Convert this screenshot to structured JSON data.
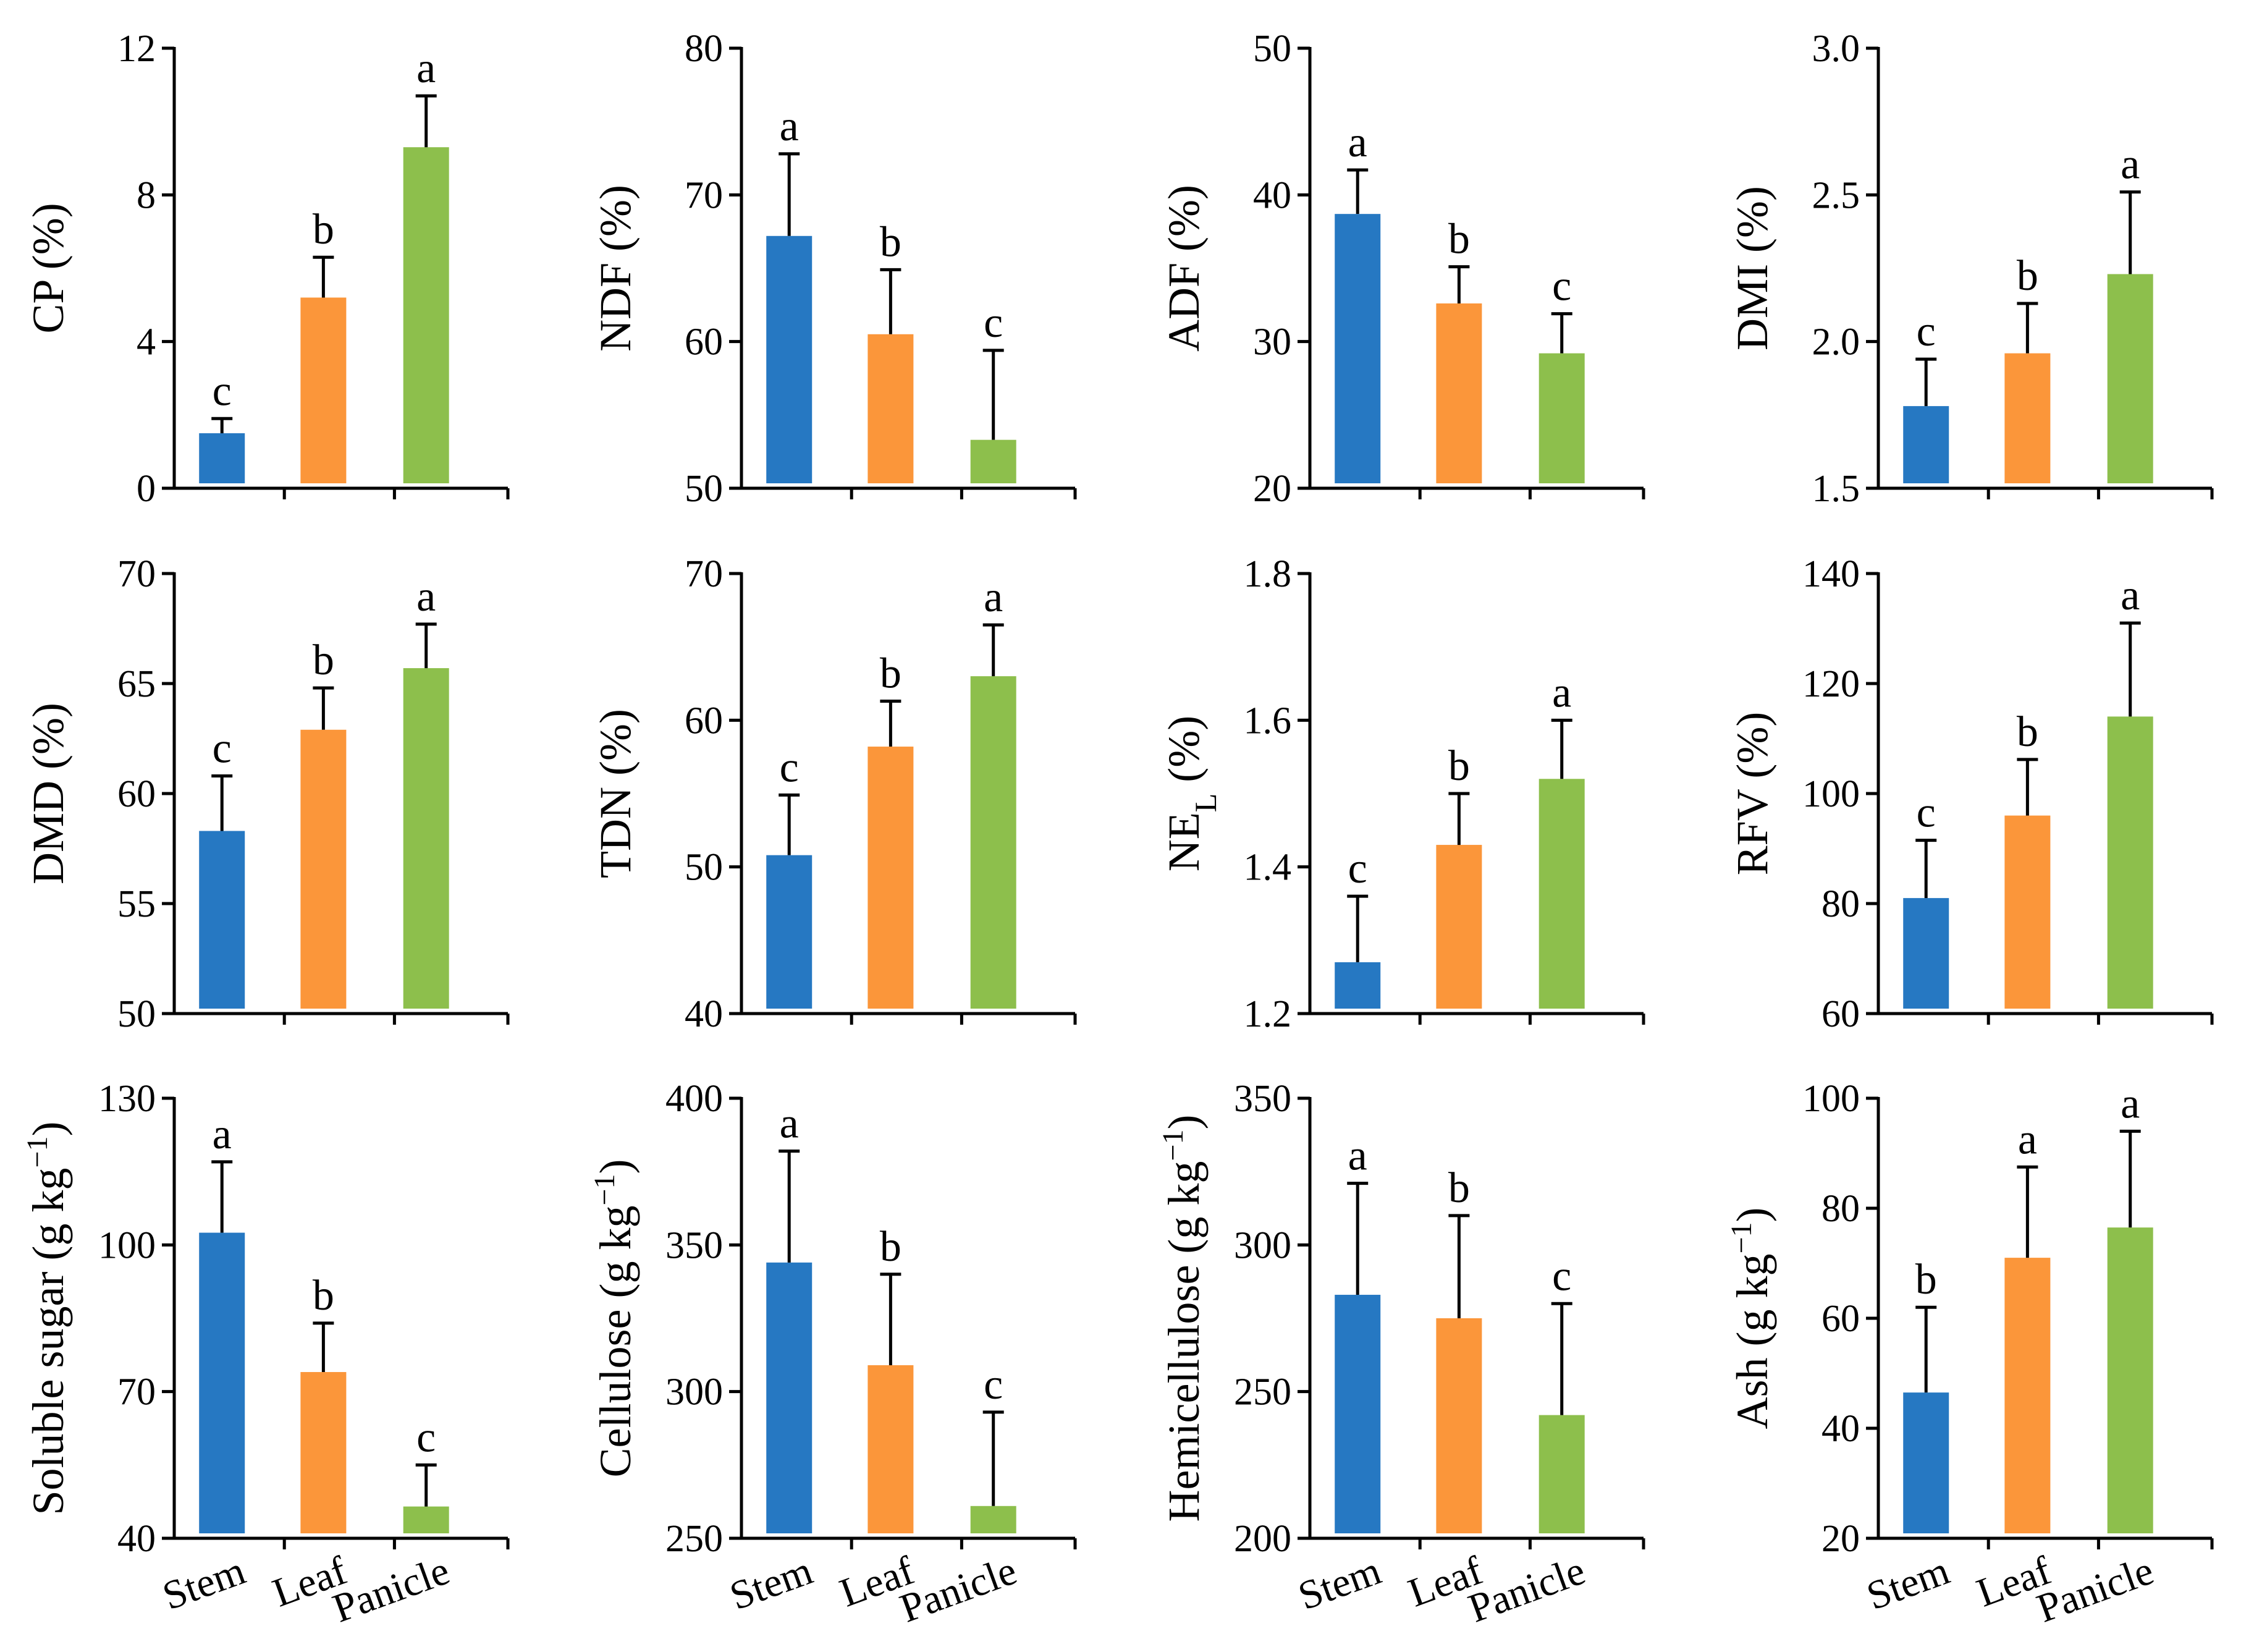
{
  "colors": {
    "stem": "#2678c2",
    "leaf": "#fb963a",
    "panicle": "#8dbf4c"
  },
  "categories": [
    "Stem",
    "Leaf",
    "Panicle"
  ],
  "chart_data": [
    {
      "type": "bar",
      "ylabel": [
        {
          "t": "CP (%)"
        }
      ],
      "ylim": [
        0,
        12
      ],
      "yticks": [
        0,
        4,
        8,
        12
      ],
      "values": [
        1.5,
        5.2,
        9.3
      ],
      "errors": [
        0.4,
        1.1,
        1.4
      ],
      "letters": [
        "c",
        "b",
        "a"
      ]
    },
    {
      "type": "bar",
      "ylabel": [
        {
          "t": "NDF (%)"
        }
      ],
      "ylim": [
        50,
        80
      ],
      "yticks": [
        50,
        60,
        70,
        80
      ],
      "values": [
        67.2,
        60.5,
        53.3
      ],
      "errors": [
        5.6,
        4.4,
        6.1
      ],
      "letters": [
        "a",
        "b",
        "c"
      ]
    },
    {
      "type": "bar",
      "ylabel": [
        {
          "t": "ADF (%)"
        }
      ],
      "ylim": [
        20,
        50
      ],
      "yticks": [
        20,
        30,
        40,
        50
      ],
      "values": [
        38.7,
        32.6,
        29.2
      ],
      "errors": [
        3.0,
        2.5,
        2.7
      ],
      "letters": [
        "a",
        "b",
        "c"
      ]
    },
    {
      "type": "bar",
      "ylabel": [
        {
          "t": "DMI (%)"
        }
      ],
      "ylim": [
        1.5,
        3.0
      ],
      "yticks": [
        1.5,
        2.0,
        2.5,
        3.0
      ],
      "tick_decimals": 1,
      "values": [
        1.78,
        1.96,
        2.23
      ],
      "errors": [
        0.16,
        0.17,
        0.28
      ],
      "letters": [
        "c",
        "b",
        "a"
      ]
    },
    {
      "type": "bar",
      "ylabel": [
        {
          "t": "DMD (%)"
        }
      ],
      "ylim": [
        50,
        70
      ],
      "yticks": [
        50,
        55,
        60,
        65,
        70
      ],
      "values": [
        58.3,
        62.9,
        65.7
      ],
      "errors": [
        2.5,
        1.9,
        2.0
      ],
      "letters": [
        "c",
        "b",
        "a"
      ]
    },
    {
      "type": "bar",
      "ylabel": [
        {
          "t": "TDN (%)"
        }
      ],
      "ylim": [
        40,
        70
      ],
      "yticks": [
        40,
        50,
        60,
        70
      ],
      "values": [
        50.8,
        58.2,
        63.0
      ],
      "errors": [
        4.1,
        3.1,
        3.5
      ],
      "letters": [
        "c",
        "b",
        "a"
      ]
    },
    {
      "type": "bar",
      "ylabel": [
        {
          "t": "NE"
        },
        {
          "t": "L",
          "sub": true
        },
        {
          "t": " (%)"
        }
      ],
      "ylim": [
        1.2,
        1.8
      ],
      "yticks": [
        1.2,
        1.4,
        1.6,
        1.8
      ],
      "tick_decimals": 1,
      "values": [
        1.27,
        1.43,
        1.52
      ],
      "errors": [
        0.09,
        0.07,
        0.08
      ],
      "letters": [
        "c",
        "b",
        "a"
      ]
    },
    {
      "type": "bar",
      "ylabel": [
        {
          "t": "RFV (%)"
        }
      ],
      "ylim": [
        60,
        140
      ],
      "yticks": [
        60,
        80,
        100,
        120,
        140
      ],
      "values": [
        81,
        96,
        114
      ],
      "errors": [
        10.5,
        10.2,
        17.0
      ],
      "letters": [
        "c",
        "b",
        "a"
      ]
    },
    {
      "type": "bar",
      "ylabel": [
        {
          "t": "Soluble sugar (g kg"
        },
        {
          "t": "−1",
          "sup": true
        },
        {
          "t": ")"
        }
      ],
      "ylim": [
        40,
        130
      ],
      "yticks": [
        40,
        70,
        100,
        130
      ],
      "values": [
        102.5,
        74.0,
        46.5
      ],
      "errors": [
        14.5,
        10.0,
        8.5
      ],
      "letters": [
        "a",
        "b",
        "c"
      ]
    },
    {
      "type": "bar",
      "ylabel": [
        {
          "t": "Cellulose (g kg"
        },
        {
          "t": "−1",
          "sup": true
        },
        {
          "t": ")"
        }
      ],
      "ylim": [
        250,
        400
      ],
      "yticks": [
        250,
        300,
        350,
        400
      ],
      "values": [
        344,
        309,
        261
      ],
      "errors": [
        38,
        31,
        32
      ],
      "letters": [
        "a",
        "b",
        "c"
      ]
    },
    {
      "type": "bar",
      "ylabel": [
        {
          "t": "Hemicellulose (g kg"
        },
        {
          "t": "−1",
          "sup": true
        },
        {
          "t": ")"
        }
      ],
      "ylim": [
        200,
        350
      ],
      "yticks": [
        200,
        250,
        300,
        350
      ],
      "values": [
        283,
        275,
        242
      ],
      "errors": [
        38,
        35,
        38
      ],
      "letters": [
        "a",
        "b",
        "c"
      ]
    },
    {
      "type": "bar",
      "ylabel": [
        {
          "t": "Ash (g kg"
        },
        {
          "t": "−1",
          "sup": true
        },
        {
          "t": ")"
        }
      ],
      "ylim": [
        20,
        100
      ],
      "yticks": [
        20,
        40,
        60,
        80,
        100
      ],
      "values": [
        46.5,
        71.0,
        76.5
      ],
      "errors": [
        15.5,
        16.5,
        17.5
      ],
      "letters": [
        "b",
        "a",
        "a"
      ]
    }
  ]
}
